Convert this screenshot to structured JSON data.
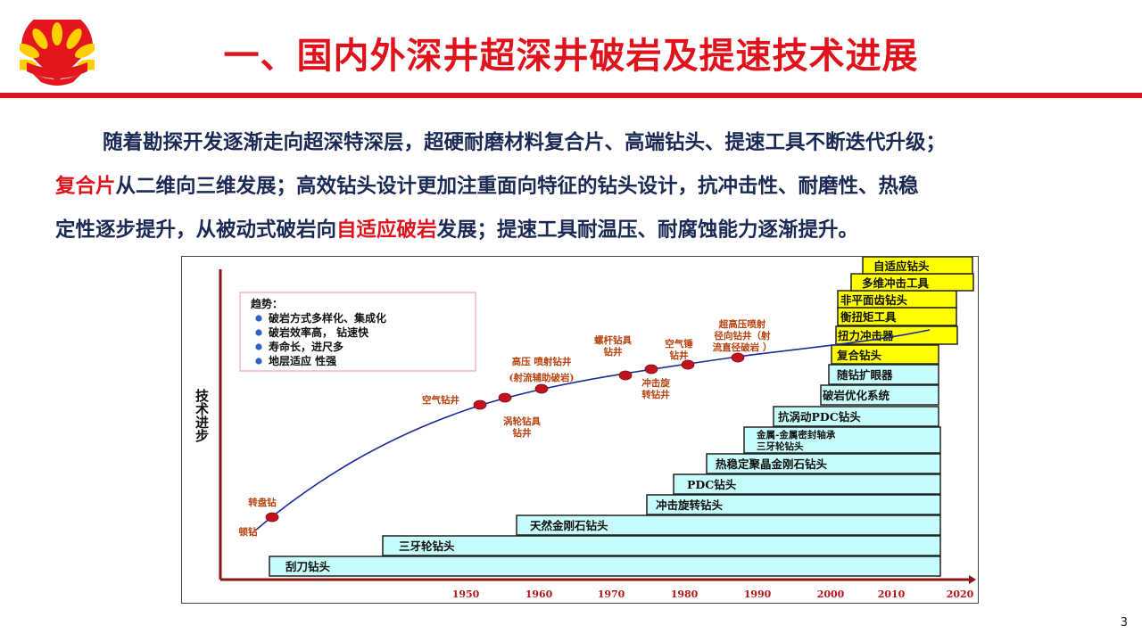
{
  "header": {
    "title": "一、国内外深井超深井破岩及提速技术进展",
    "brand_color": "#e0121b"
  },
  "body": {
    "lines": [
      [
        {
          "t": "随着勘探开发逐渐走向超深特深层，超硬耐磨材料复合片、高端钻头、提速工具不断迭代升级；",
          "hl": false
        }
      ],
      [
        {
          "t": "复合片",
          "hl": true
        },
        {
          "t": "从二维向三维发展；高效钻头设计更加注重面向特征的钻头设计，抗冲击性、耐磨性、热稳",
          "hl": false
        }
      ],
      [
        {
          "t": "定性逐步提升，从被动式破岩向",
          "hl": false
        },
        {
          "t": "自适应破岩",
          "hl": true
        },
        {
          "t": "发展；提速工具耐温压、耐腐蚀能力逐渐提升。",
          "hl": false
        }
      ]
    ]
  },
  "figure": {
    "ylabel": "技术进步",
    "xticks": [
      "1950",
      "1960",
      "1970",
      "1980",
      "1990",
      "2000",
      "2010",
      "2020"
    ],
    "trend_box": {
      "title": "趋势：",
      "items": [
        "破岩方式多样化、集成化",
        "破岩效率高， 钻速快",
        "寿命长，进尺多",
        "地层适应 性强"
      ]
    },
    "steps": [
      "刮刀钻头",
      "三牙轮钻头",
      "天然金刚石钻头",
      "冲击旋转钻头",
      "PDC钻头",
      "热稳定聚晶金刚石钻头",
      [
        "金属-金属密封轴承",
        "三牙轮钻头"
      ],
      "抗涡动PDC钻头",
      "破岩优化系统",
      "随钻扩眼器",
      "复合钻头",
      "扭力冲击器",
      "衡扭矩工具",
      "非平面齿钻头",
      "多维冲击工具",
      "自适应钻头"
    ],
    "curve_labels": {
      "dunzuan": "顿钻",
      "zhuanpan": "转盘钻",
      "kongqi": "空气钻井",
      "wolun": [
        "涡轮钻具",
        "钻井"
      ],
      "gaoya": [
        "高压 喷射钻井",
        "(射流辅助破岩)"
      ],
      "luogan": [
        "螺杆钻具",
        "钻井"
      ],
      "chongji": [
        "冲击旋",
        "转钻井"
      ],
      "kongqichui": [
        "空气锤",
        "钻井"
      ],
      "chaogaoya": [
        "超高压喷射",
        "径向钻井（射",
        "流直径破岩 ）"
      ]
    },
    "colors": {
      "step_fill": "#c6fcfb",
      "new_fill": "#ffff00",
      "curve": "#1d2c9b",
      "dot": "#c1121f",
      "axis": "#8b1414",
      "label": "#b7410e"
    }
  },
  "page_number": "3"
}
